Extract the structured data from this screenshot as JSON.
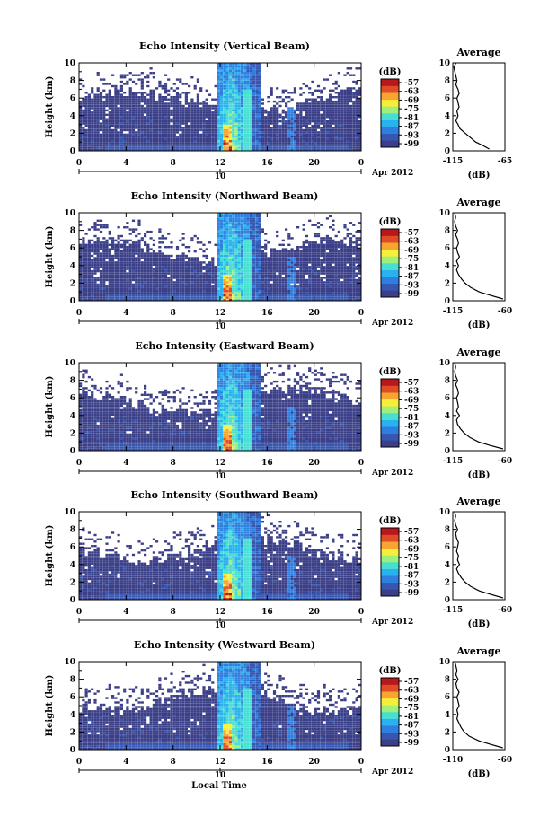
{
  "colors": {
    "background": "#3d4a8a",
    "colormap": [
      "#3b3f88",
      "#3656b0",
      "#2f7fe0",
      "#2ab2f0",
      "#46dfd2",
      "#9ff07a",
      "#f5ee3a",
      "#f7a431",
      "#e14b26",
      "#b8181b"
    ]
  },
  "chart_data": [
    {
      "type": "heatmap",
      "title": "Echo Intensity (Vertical Beam)",
      "ylabel": "Height (km)",
      "xlim": [
        0,
        24
      ],
      "ylim": [
        0,
        10
      ],
      "xticks": [
        "0",
        "4",
        "8",
        "12",
        "16",
        "20",
        "0"
      ],
      "yticks": [
        "0",
        "2",
        "4",
        "6",
        "8",
        "10"
      ],
      "date_tick": "10",
      "date_label": "Apr 2012",
      "colorbar": {
        "unit": "(dB)",
        "ticks": [
          "-57",
          "-63",
          "-69",
          "-75",
          "-81",
          "-87",
          "-93",
          "-99"
        ]
      },
      "average": {
        "title": "Average",
        "xlabel": "(dB)",
        "xticks": [
          "-115",
          "-65"
        ],
        "xlim": [
          -115,
          -65
        ],
        "yticks": [
          "0",
          "2",
          "4",
          "6",
          "8",
          "10"
        ],
        "profile": [
          [
            -80,
            0.2
          ],
          [
            -86,
            0.6
          ],
          [
            -93,
            1.0
          ],
          [
            -98,
            1.5
          ],
          [
            -103,
            2.0
          ],
          [
            -108,
            2.5
          ],
          [
            -110,
            3.0
          ],
          [
            -112,
            3.4
          ],
          [
            -110,
            4.0
          ],
          [
            -111,
            4.5
          ],
          [
            -109,
            5.0
          ],
          [
            -110,
            5.5
          ],
          [
            -111,
            6.0
          ],
          [
            -109,
            6.5
          ],
          [
            -110,
            7.0
          ],
          [
            -112,
            7.5
          ],
          [
            -111,
            8.0
          ],
          [
            -112,
            8.5
          ],
          [
            -113,
            9.0
          ],
          [
            -114,
            9.5
          ],
          [
            -112,
            10.0
          ]
        ]
      }
    },
    {
      "type": "heatmap",
      "title": "Echo Intensity (Northward Beam)",
      "ylabel": "Height (km)",
      "xlim": [
        0,
        24
      ],
      "ylim": [
        0,
        10
      ],
      "xticks": [
        "0",
        "4",
        "8",
        "12",
        "16",
        "20",
        "0"
      ],
      "yticks": [
        "0",
        "2",
        "4",
        "6",
        "8",
        "10"
      ],
      "date_tick": "10",
      "date_label": "Apr 2012",
      "colorbar": {
        "unit": "(dB)",
        "ticks": [
          "-57",
          "-63",
          "-69",
          "-75",
          "-81",
          "-87",
          "-93",
          "-99"
        ]
      },
      "average": {
        "title": "Average",
        "xlabel": "(dB)",
        "xticks": [
          "-115",
          "-60"
        ],
        "xlim": [
          -115,
          -60
        ],
        "yticks": [
          "0",
          "2",
          "4",
          "6",
          "8",
          "10"
        ],
        "profile": [
          [
            -62,
            0.2
          ],
          [
            -75,
            0.6
          ],
          [
            -87,
            1.0
          ],
          [
            -96,
            1.5
          ],
          [
            -102,
            2.0
          ],
          [
            -106,
            2.5
          ],
          [
            -109,
            3.0
          ],
          [
            -111,
            3.5
          ],
          [
            -109,
            4.0
          ],
          [
            -111,
            4.5
          ],
          [
            -108,
            5.0
          ],
          [
            -110,
            5.5
          ],
          [
            -111,
            6.0
          ],
          [
            -109,
            6.5
          ],
          [
            -110,
            7.0
          ],
          [
            -112,
            7.5
          ],
          [
            -110,
            8.0
          ],
          [
            -112,
            8.5
          ],
          [
            -113,
            9.0
          ],
          [
            -112,
            9.5
          ],
          [
            -113,
            10.0
          ]
        ]
      }
    },
    {
      "type": "heatmap",
      "title": "Echo Intensity (Eastward Beam)",
      "ylabel": "Height (km)",
      "xlim": [
        0,
        24
      ],
      "ylim": [
        0,
        10
      ],
      "xticks": [
        "0",
        "4",
        "8",
        "12",
        "16",
        "20",
        "0"
      ],
      "yticks": [
        "0",
        "2",
        "4",
        "6",
        "8",
        "10"
      ],
      "date_tick": "10",
      "date_label": "Apr 2012",
      "colorbar": {
        "unit": "(dB)",
        "ticks": [
          "-57",
          "-63",
          "-69",
          "-75",
          "-81",
          "-87",
          "-93",
          "-99"
        ]
      },
      "average": {
        "title": "Average",
        "xlabel": "(dB)",
        "xticks": [
          "-115",
          "-60"
        ],
        "xlim": [
          -115,
          -60
        ],
        "yticks": [
          "0",
          "2",
          "4",
          "6",
          "8",
          "10"
        ],
        "profile": [
          [
            -62,
            0.2
          ],
          [
            -76,
            0.6
          ],
          [
            -88,
            1.0
          ],
          [
            -97,
            1.5
          ],
          [
            -103,
            2.0
          ],
          [
            -107,
            2.5
          ],
          [
            -110,
            3.0
          ],
          [
            -111,
            3.5
          ],
          [
            -108,
            4.0
          ],
          [
            -111,
            4.5
          ],
          [
            -109,
            5.0
          ],
          [
            -110,
            5.5
          ],
          [
            -111,
            6.0
          ],
          [
            -109,
            6.5
          ],
          [
            -110,
            7.0
          ],
          [
            -112,
            7.5
          ],
          [
            -110,
            8.0
          ],
          [
            -112,
            8.5
          ],
          [
            -113,
            9.0
          ],
          [
            -112,
            9.5
          ],
          [
            -113,
            10.0
          ]
        ]
      }
    },
    {
      "type": "heatmap",
      "title": "Echo Intensity (Southward Beam)",
      "ylabel": "Height (km)",
      "xlim": [
        0,
        24
      ],
      "ylim": [
        0,
        10
      ],
      "xticks": [
        "0",
        "4",
        "8",
        "12",
        "16",
        "20",
        "0"
      ],
      "yticks": [
        "0",
        "2",
        "4",
        "6",
        "8",
        "10"
      ],
      "date_tick": "10",
      "date_label": "Apr 2012",
      "colorbar": {
        "unit": "(dB)",
        "ticks": [
          "-57",
          "-63",
          "-69",
          "-75",
          "-81",
          "-87",
          "-93",
          "-99"
        ]
      },
      "average": {
        "title": "Average",
        "xlabel": "(dB)",
        "xticks": [
          "-115",
          "-60"
        ],
        "xlim": [
          -115,
          -60
        ],
        "yticks": [
          "0",
          "2",
          "4",
          "6",
          "8",
          "10"
        ],
        "profile": [
          [
            -62,
            0.2
          ],
          [
            -75,
            0.6
          ],
          [
            -87,
            1.0
          ],
          [
            -96,
            1.5
          ],
          [
            -102,
            2.0
          ],
          [
            -106,
            2.5
          ],
          [
            -109,
            3.0
          ],
          [
            -111,
            3.5
          ],
          [
            -108,
            4.0
          ],
          [
            -110,
            4.5
          ],
          [
            -109,
            5.0
          ],
          [
            -111,
            5.5
          ],
          [
            -110,
            6.0
          ],
          [
            -109,
            6.5
          ],
          [
            -111,
            7.0
          ],
          [
            -112,
            7.5
          ],
          [
            -110,
            8.0
          ],
          [
            -112,
            8.5
          ],
          [
            -113,
            9.0
          ],
          [
            -112,
            9.5
          ],
          [
            -113,
            10.0
          ]
        ]
      }
    },
    {
      "type": "heatmap",
      "title": "Echo Intensity (Westward Beam)",
      "ylabel": "Height (km)",
      "xlim": [
        0,
        24
      ],
      "ylim": [
        0,
        10
      ],
      "xticks": [
        "0",
        "4",
        "8",
        "12",
        "16",
        "20",
        "0"
      ],
      "yticks": [
        "0",
        "2",
        "4",
        "6",
        "8",
        "10"
      ],
      "date_tick": "10",
      "date_label": "Apr 2012",
      "colorbar": {
        "unit": "(dB)",
        "ticks": [
          "-57",
          "-63",
          "-69",
          "-75",
          "-81",
          "-87",
          "-93",
          "-99"
        ]
      },
      "average": {
        "title": "Average",
        "xlabel": "(dB)",
        "xticks": [
          "-110",
          "-60"
        ],
        "xlim": [
          -110,
          -60
        ],
        "yticks": [
          "0",
          "2",
          "4",
          "6",
          "8",
          "10"
        ],
        "profile": [
          [
            -62,
            0.2
          ],
          [
            -74,
            0.6
          ],
          [
            -85,
            1.0
          ],
          [
            -94,
            1.5
          ],
          [
            -99,
            2.0
          ],
          [
            -102,
            2.5
          ],
          [
            -104,
            3.0
          ],
          [
            -106,
            3.5
          ],
          [
            -105,
            4.0
          ],
          [
            -106,
            4.5
          ],
          [
            -104,
            5.0
          ],
          [
            -105,
            5.5
          ],
          [
            -106,
            6.0
          ],
          [
            -104,
            6.5
          ],
          [
            -106,
            7.0
          ],
          [
            -107,
            7.5
          ],
          [
            -105,
            8.0
          ],
          [
            -107,
            8.5
          ],
          [
            -106,
            9.0
          ],
          [
            -107,
            9.5
          ],
          [
            -108,
            10.0
          ]
        ]
      }
    }
  ],
  "xlabel": "Local Time"
}
